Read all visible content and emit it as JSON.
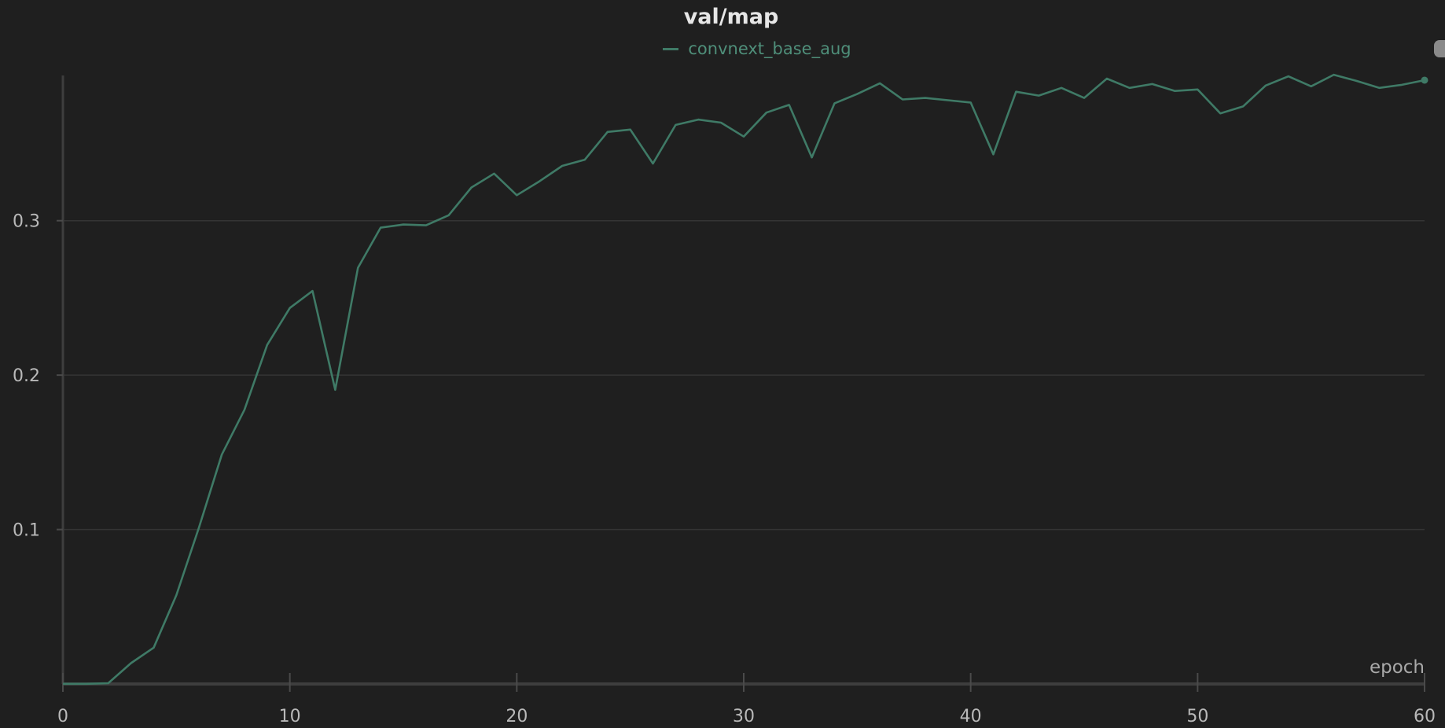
{
  "chart_data": {
    "type": "line",
    "title": "val/map",
    "xlabel": "epoch",
    "ylabel": "",
    "xlim": [
      0,
      60
    ],
    "ylim": [
      0,
      0.392
    ],
    "x_ticks": [
      0,
      10,
      20,
      30,
      40,
      50,
      60
    ],
    "x_tick_labels": [
      "0",
      "10",
      "20",
      "30",
      "40",
      "50",
      "60"
    ],
    "y_ticks": [
      0.1,
      0.2,
      0.3
    ],
    "y_tick_labels": [
      "0.1",
      "0.2",
      "0.3"
    ],
    "grid": true,
    "legend_position": "top-center",
    "series": [
      {
        "name": "convnext_base_aug",
        "color": "#3f7a66",
        "x": [
          0,
          1,
          2,
          3,
          4,
          5,
          6,
          7,
          8,
          9,
          10,
          11,
          12,
          13,
          14,
          15,
          16,
          17,
          18,
          19,
          20,
          21,
          22,
          23,
          24,
          25,
          26,
          27,
          28,
          29,
          30,
          31,
          32,
          33,
          34,
          35,
          36,
          37,
          38,
          39,
          40,
          41,
          42,
          43,
          44,
          45,
          46,
          47,
          48,
          49,
          50,
          51,
          52,
          53,
          54,
          55,
          56,
          57,
          58,
          59,
          60
        ],
        "values": [
          0.0001,
          0.0001,
          0.0005,
          0.0135,
          0.0235,
          0.0575,
          0.1015,
          0.1485,
          0.1775,
          0.2195,
          0.2435,
          0.2545,
          0.1905,
          0.2695,
          0.2955,
          0.2975,
          0.297,
          0.3035,
          0.3215,
          0.3305,
          0.3165,
          0.3255,
          0.3355,
          0.3395,
          0.3575,
          0.359,
          0.337,
          0.362,
          0.3655,
          0.3635,
          0.3545,
          0.37,
          0.375,
          0.341,
          0.376,
          0.382,
          0.389,
          0.3785,
          0.3795,
          0.378,
          0.3765,
          0.343,
          0.3835,
          0.381,
          0.386,
          0.3795,
          0.392,
          0.386,
          0.3885,
          0.384,
          0.385,
          0.3695,
          0.374,
          0.3875,
          0.3935,
          0.387,
          0.3945,
          0.3905,
          0.386,
          0.388,
          0.391
        ]
      }
    ]
  },
  "ui": {
    "scroll_color": "#8a8a8a"
  }
}
